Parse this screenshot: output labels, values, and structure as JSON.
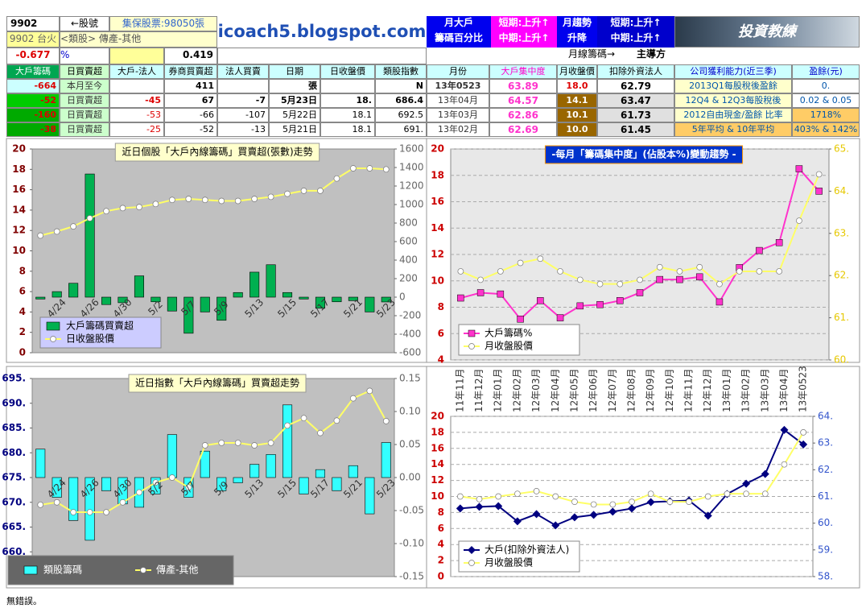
{
  "header": {
    "stock_code": "9902",
    "code_label": "←股號",
    "shares": "集保股票:98050張",
    "name": "9902 台火",
    "sector": "<類股> 傳產-其他",
    "site": "icoach5.blogspot.com",
    "pct_change": "-0.677",
    "pct_unit": "%",
    "ratio": "0.419",
    "box1": [
      "月大戶",
      "籌碼百分比"
    ],
    "box2": [
      "短期:上升↑",
      "中期:上升↑"
    ],
    "box3": [
      "月趨勢",
      "升降"
    ],
    "box4": [
      "短期:上升↑",
      "中期:上升↑"
    ],
    "logo": "投資教練",
    "monthly": "月線籌碼→",
    "leader": "主導方"
  },
  "table": {
    "columns": [
      "大戶籌碼",
      "日買賣超",
      "大戶-法人",
      "券商買賣超",
      "法人買賣",
      "日期",
      "日收盤價",
      "類股指數",
      "月份",
      "大戶集中度",
      "月收盤價",
      "扣除外資法人",
      "公司獲利能力(近三季)",
      "盈餘(元)"
    ],
    "rows": [
      [
        "-664",
        "本月至今",
        "411",
        "張",
        "N",
        "13年0523",
        "63.89",
        "18.0",
        "62.79",
        "2013Q1每股稅後盈餘",
        "0."
      ],
      [
        "-52",
        "日買賣超",
        "-45",
        "67",
        "-7",
        "5月23日",
        "18.",
        "686.4",
        "13年04月",
        "64.57",
        "14.1",
        "63.47",
        "12Q4 & 12Q3每股稅後",
        "0.02 & 0.05"
      ],
      [
        "-160",
        "日買賣超",
        "-53",
        "-66",
        "-107",
        "5月22日",
        "18.1",
        "692.5",
        "13年03月",
        "62.86",
        "10.1",
        "61.73",
        "2012自由現金/盈餘 比率",
        "1718%"
      ],
      [
        "-38",
        "日買賣超",
        "-25",
        "-52",
        "-13",
        "5月21日",
        "18.1",
        "691.",
        "13年02月",
        "62.69",
        "10.0",
        "61.45",
        "5年平均 & 10年平均",
        "403% & 142%"
      ]
    ]
  },
  "chart_data": [
    {
      "type": "combo",
      "title": "近日個股「大戶內線籌碼」買賣超(張數)走勢",
      "background": "#c0c0c0",
      "grid": false,
      "legend": "lower left",
      "categories": [
        null,
        "4/24",
        null,
        "4/26",
        null,
        "4/30",
        null,
        "5/2",
        null,
        "5/7",
        null,
        "5/9",
        null,
        "5/13",
        null,
        "5/15",
        null,
        "5/17",
        null,
        "5/21",
        null,
        "5/23"
      ],
      "series": [
        {
          "name": "大戶籌碼買賣超",
          "kind": "bar",
          "axis": "y2",
          "color": "#00b050",
          "values": [
            -20,
            60,
            150,
            1330,
            -80,
            -60,
            230,
            -50,
            -150,
            -390,
            -160,
            -250,
            50,
            270,
            350,
            50,
            -20,
            -120,
            -50,
            -38,
            -160,
            -52
          ]
        },
        {
          "name": "日收盤股價",
          "kind": "line",
          "marker": "circle",
          "color": "#ffff66",
          "values": [
            11.5,
            11.9,
            12.4,
            13.2,
            13.9,
            14.2,
            14.3,
            14.6,
            15.0,
            15.1,
            15.0,
            14.9,
            14.9,
            15.1,
            15.3,
            15.6,
            15.9,
            15.9,
            17.1,
            18.1,
            18.1,
            18.0
          ]
        }
      ],
      "ylim": [
        0,
        20
      ],
      "yticks": [
        0,
        2,
        4,
        6,
        8,
        10,
        12,
        14,
        16,
        18,
        20
      ],
      "y2lim": [
        -600,
        1600
      ],
      "y2ticks": [
        -600,
        -400,
        -200,
        0,
        200,
        400,
        600,
        800,
        1000,
        1200,
        1400,
        1600
      ]
    },
    {
      "type": "line",
      "title": "-每月「籌碼集中度」(佔股本%)變動趨勢 -",
      "background": "#e8e8e8",
      "grid": true,
      "legend": "lower left",
      "series": [
        {
          "name": "大戶籌碼%",
          "kind": "line",
          "marker": "square",
          "color": "#ff33cc",
          "values": [
            8.7,
            9.1,
            9.0,
            7.1,
            8.5,
            7.2,
            8.1,
            8.2,
            8.5,
            9.1,
            10.1,
            10.1,
            10.3,
            8.4,
            11.0,
            12.3,
            12.9,
            18.5,
            16.8
          ]
        },
        {
          "name": "月收盤股價",
          "kind": "line",
          "axis": "y2",
          "marker": "circle",
          "color": "#ffff66",
          "values": [
            62.1,
            61.9,
            62.1,
            62.3,
            62.4,
            62.1,
            61.9,
            61.8,
            61.8,
            61.9,
            62.2,
            62.1,
            62.2,
            61.8,
            62.1,
            62.1,
            62.1,
            63.3,
            64.4
          ]
        }
      ],
      "ylim": [
        4,
        20
      ],
      "yticks": [
        4,
        6,
        8,
        10,
        12,
        14,
        16,
        18,
        20
      ],
      "y2lim": [
        60,
        65
      ],
      "y2ticks": [
        {
          "value": 60,
          "label": "60."
        },
        {
          "value": 61,
          "label": "61."
        },
        {
          "value": 62,
          "label": "62."
        },
        {
          "value": 63,
          "label": "63."
        },
        {
          "value": 64,
          "label": "64."
        },
        {
          "value": 65,
          "label": "65."
        }
      ]
    },
    {
      "type": "combo",
      "title": "近日指數「大戶內線籌碼」買賣超走勢",
      "background": "#c0c0c0",
      "grid": false,
      "legend": "lower left",
      "categories": [
        null,
        "4/24",
        null,
        "4/26",
        null,
        "4/30",
        null,
        "5/2",
        null,
        "5/7",
        null,
        "5/9",
        null,
        "5/13",
        null,
        "5/15",
        null,
        "5/17",
        null,
        "5/21",
        null,
        "5/23"
      ],
      "series": [
        {
          "name": "類股籌碼",
          "kind": "bar",
          "axis": "y2",
          "color": "#33ffff",
          "values": [
            0.043,
            -0.03,
            -0.065,
            -0.095,
            -0.02,
            -0.04,
            -0.045,
            -0.025,
            0.065,
            -0.03,
            0.04,
            -0.02,
            -0.008,
            0.02,
            0.035,
            0.11,
            -0.025,
            0.012,
            -0.02,
            0.018,
            -0.055,
            0.053
          ]
        },
        {
          "name": "傳產-其他",
          "kind": "line",
          "marker": "circle",
          "color": "#ffff66",
          "values": [
            669.5,
            670,
            668,
            668,
            668,
            670,
            672,
            674,
            675,
            673,
            681.5,
            682,
            682,
            681.5,
            682,
            685.5,
            687,
            684,
            686.5,
            691,
            692.5,
            686.4
          ]
        }
      ],
      "ylim": [
        655,
        695
      ],
      "yticks": [
        {
          "value": 660,
          "label": "660."
        },
        {
          "value": 665,
          "label": "665."
        },
        {
          "value": 670,
          "label": "670."
        },
        {
          "value": 675,
          "label": "675."
        },
        {
          "value": 680,
          "label": "680."
        },
        {
          "value": 685,
          "label": "685."
        },
        {
          "value": 690,
          "label": "690."
        },
        {
          "value": 695,
          "label": "695."
        }
      ],
      "y2lim": [
        -0.15,
        0.15
      ],
      "y2ticks": [
        {
          "value": -0.15,
          "label": "-0.15"
        },
        {
          "value": -0.1,
          "label": "-0.10"
        },
        {
          "value": -0.05,
          "label": "-0.05"
        },
        {
          "value": 0,
          "label": "0.00"
        },
        {
          "value": 0.05,
          "label": "0.05"
        },
        {
          "value": 0.1,
          "label": "0.10"
        },
        {
          "value": 0.15,
          "label": "0.15"
        }
      ]
    },
    {
      "type": "line",
      "background": "#ffffff",
      "grid": true,
      "legend": "lower left",
      "categories": [
        "11年11月",
        "11年12月",
        "12年01月",
        "12年02月",
        "12年03月",
        "12年04月",
        "12年05月",
        "12年06月",
        "12年07月",
        "12年08月",
        "12年09月",
        "12年10月",
        "12年11月",
        "12年12月",
        "13年01月",
        "13年02月",
        "13年03月",
        "13年04月",
        "13年0523"
      ],
      "series": [
        {
          "name": "大戶(扣除外資法人)",
          "kind": "line",
          "marker": "diamond",
          "color": "#000080",
          "values": [
            8.5,
            8.7,
            8.8,
            6.9,
            7.8,
            6.4,
            7.4,
            7.7,
            8.1,
            8.5,
            9.3,
            9.4,
            9.5,
            7.6,
            10.3,
            11.6,
            12.8,
            18.3,
            16.5
          ]
        },
        {
          "name": "月收盤股價",
          "kind": "line",
          "axis": "y2",
          "marker": "circle",
          "color": "#ffff66",
          "values": [
            61.0,
            60.9,
            61.0,
            61.1,
            61.2,
            61.0,
            60.8,
            60.7,
            60.7,
            60.8,
            61.1,
            60.8,
            60.8,
            61.0,
            61.1,
            61.1,
            61.1,
            62.2,
            63.4
          ]
        }
      ],
      "ylim": [
        0,
        20
      ],
      "yticks": [
        0,
        2,
        4,
        6,
        8,
        10,
        12,
        14,
        16,
        18,
        20
      ],
      "y2lim": [
        58,
        64
      ],
      "y2ticks": [
        {
          "value": 58,
          "label": "58."
        },
        {
          "value": 59,
          "label": "59."
        },
        {
          "value": 60,
          "label": "60."
        },
        {
          "value": 61,
          "label": "61."
        },
        {
          "value": 62,
          "label": "62."
        },
        {
          "value": 63,
          "label": "63."
        },
        {
          "value": 64,
          "label": "64."
        }
      ]
    }
  ],
  "footer": "無錯誤。"
}
